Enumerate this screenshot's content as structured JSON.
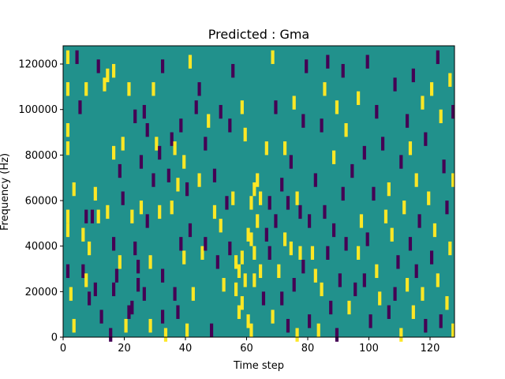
{
  "chart_data": {
    "type": "heatmap",
    "title": "Predicted : Gma",
    "xlabel": "Time step",
    "ylabel": "Frequency (Hz)",
    "xlim": [
      0,
      128
    ],
    "ylim": [
      0,
      128000
    ],
    "xticks": [
      0,
      20,
      40,
      60,
      80,
      100,
      120
    ],
    "xtick_labels": [
      "0",
      "20",
      "40",
      "60",
      "80",
      "100",
      "120"
    ],
    "yticks": [
      0,
      20000,
      40000,
      60000,
      80000,
      100000,
      120000
    ],
    "ytick_labels": [
      "0",
      "20000",
      "40000",
      "60000",
      "80000",
      "100000",
      "120000"
    ],
    "grid": false,
    "colormap": "viridis",
    "colors": {
      "background": "#21918c",
      "high": "#fde725",
      "low": "#440154"
    },
    "cells": [
      {
        "t": 1,
        "f": 124000,
        "v": "high"
      },
      {
        "t": 1,
        "f": 110000,
        "v": "high"
      },
      {
        "t": 1,
        "f": 92000,
        "v": "high"
      },
      {
        "t": 1,
        "f": 84000,
        "v": "high"
      },
      {
        "t": 1,
        "f": 54000,
        "v": "high"
      },
      {
        "t": 1,
        "f": 48000,
        "v": "high"
      },
      {
        "t": 1,
        "f": 30000,
        "v": "low"
      },
      {
        "t": 2,
        "f": 20000,
        "v": "high"
      },
      {
        "t": 3,
        "f": 66000,
        "v": "high"
      },
      {
        "t": 3,
        "f": 6000,
        "v": "high"
      },
      {
        "t": 4,
        "f": 124000,
        "v": "low"
      },
      {
        "t": 5,
        "f": 102000,
        "v": "low"
      },
      {
        "t": 6,
        "f": 46000,
        "v": "high"
      },
      {
        "t": 6,
        "f": 30000,
        "v": "low"
      },
      {
        "t": 7,
        "f": 110000,
        "v": "high"
      },
      {
        "t": 7,
        "f": 54000,
        "v": "low"
      },
      {
        "t": 7,
        "f": 26000,
        "v": "high"
      },
      {
        "t": 8,
        "f": 40000,
        "v": "high"
      },
      {
        "t": 8,
        "f": 18000,
        "v": "low"
      },
      {
        "t": 9,
        "f": 54000,
        "v": "low"
      },
      {
        "t": 10,
        "f": 64000,
        "v": "high"
      },
      {
        "t": 10,
        "f": 22000,
        "v": "low"
      },
      {
        "t": 11,
        "f": 120000,
        "v": "low"
      },
      {
        "t": 11,
        "f": 54000,
        "v": "high"
      },
      {
        "t": 12,
        "f": 10000,
        "v": "low"
      },
      {
        "t": 13,
        "f": 112000,
        "v": "high"
      },
      {
        "t": 14,
        "f": 116000,
        "v": "high"
      },
      {
        "t": 14,
        "f": 56000,
        "v": "high"
      },
      {
        "t": 15,
        "f": 2000,
        "v": "low"
      },
      {
        "t": 16,
        "f": 118000,
        "v": "high"
      },
      {
        "t": 16,
        "f": 82000,
        "v": "high"
      },
      {
        "t": 16,
        "f": 42000,
        "v": "low"
      },
      {
        "t": 16,
        "f": 22000,
        "v": "low"
      },
      {
        "t": 17,
        "f": 28000,
        "v": "low"
      },
      {
        "t": 18,
        "f": 74000,
        "v": "low"
      },
      {
        "t": 18,
        "f": 34000,
        "v": "high"
      },
      {
        "t": 19,
        "f": 86000,
        "v": "high"
      },
      {
        "t": 19,
        "f": 62000,
        "v": "low"
      },
      {
        "t": 20,
        "f": 6000,
        "v": "high"
      },
      {
        "t": 21,
        "f": 110000,
        "v": "high"
      },
      {
        "t": 21,
        "f": 12000,
        "v": "low"
      },
      {
        "t": 22,
        "f": 14000,
        "v": "low"
      },
      {
        "t": 22,
        "f": 54000,
        "v": "high"
      },
      {
        "t": 23,
        "f": 98000,
        "v": "low"
      },
      {
        "t": 23,
        "f": 40000,
        "v": "low"
      },
      {
        "t": 24,
        "f": 32000,
        "v": "low"
      },
      {
        "t": 24,
        "f": 24000,
        "v": "low"
      },
      {
        "t": 25,
        "f": 78000,
        "v": "low"
      },
      {
        "t": 25,
        "f": 58000,
        "v": "high"
      },
      {
        "t": 26,
        "f": 100000,
        "v": "low"
      },
      {
        "t": 26,
        "f": 20000,
        "v": "low"
      },
      {
        "t": 27,
        "f": 92000,
        "v": "low"
      },
      {
        "t": 27,
        "f": 52000,
        "v": "low"
      },
      {
        "t": 28,
        "f": 34000,
        "v": "high"
      },
      {
        "t": 28,
        "f": 6000,
        "v": "high"
      },
      {
        "t": 29,
        "f": 110000,
        "v": "high"
      },
      {
        "t": 29,
        "f": 70000,
        "v": "low"
      },
      {
        "t": 30,
        "f": 86000,
        "v": "high"
      },
      {
        "t": 31,
        "f": 82000,
        "v": "low"
      },
      {
        "t": 31,
        "f": 56000,
        "v": "high"
      },
      {
        "t": 32,
        "f": 120000,
        "v": "low"
      },
      {
        "t": 32,
        "f": 28000,
        "v": "low"
      },
      {
        "t": 32,
        "f": 10000,
        "v": "low"
      },
      {
        "t": 33,
        "f": 2000,
        "v": "high"
      },
      {
        "t": 34,
        "f": 72000,
        "v": "low"
      },
      {
        "t": 35,
        "f": 88000,
        "v": "low"
      },
      {
        "t": 35,
        "f": 58000,
        "v": "high"
      },
      {
        "t": 36,
        "f": 84000,
        "v": "high"
      },
      {
        "t": 36,
        "f": 20000,
        "v": "low"
      },
      {
        "t": 37,
        "f": 68000,
        "v": "high"
      },
      {
        "t": 37,
        "f": 12000,
        "v": "low"
      },
      {
        "t": 38,
        "f": 94000,
        "v": "low"
      },
      {
        "t": 38,
        "f": 42000,
        "v": "low"
      },
      {
        "t": 39,
        "f": 78000,
        "v": "high"
      },
      {
        "t": 39,
        "f": 36000,
        "v": "high"
      },
      {
        "t": 40,
        "f": 66000,
        "v": "low"
      },
      {
        "t": 40,
        "f": 4000,
        "v": "high"
      },
      {
        "t": 41,
        "f": 122000,
        "v": "high"
      },
      {
        "t": 41,
        "f": 48000,
        "v": "low"
      },
      {
        "t": 42,
        "f": 20000,
        "v": "high"
      },
      {
        "t": 43,
        "f": 102000,
        "v": "low"
      },
      {
        "t": 44,
        "f": 110000,
        "v": "low"
      },
      {
        "t": 44,
        "f": 70000,
        "v": "high"
      },
      {
        "t": 45,
        "f": 38000,
        "v": "high"
      },
      {
        "t": 46,
        "f": 86000,
        "v": "low"
      },
      {
        "t": 46,
        "f": 42000,
        "v": "low"
      },
      {
        "t": 47,
        "f": 96000,
        "v": "high"
      },
      {
        "t": 48,
        "f": 4000,
        "v": "low"
      },
      {
        "t": 49,
        "f": 72000,
        "v": "low"
      },
      {
        "t": 49,
        "f": 56000,
        "v": "high"
      },
      {
        "t": 50,
        "f": 34000,
        "v": "low"
      },
      {
        "t": 51,
        "f": 100000,
        "v": "low"
      },
      {
        "t": 51,
        "f": 50000,
        "v": "high"
      },
      {
        "t": 52,
        "f": 24000,
        "v": "high"
      },
      {
        "t": 53,
        "f": 60000,
        "v": "low"
      },
      {
        "t": 54,
        "f": 94000,
        "v": "low"
      },
      {
        "t": 54,
        "f": 40000,
        "v": "low"
      },
      {
        "t": 55,
        "f": 118000,
        "v": "low"
      },
      {
        "t": 55,
        "f": 62000,
        "v": "high"
      },
      {
        "t": 56,
        "f": 34000,
        "v": "high"
      },
      {
        "t": 56,
        "f": 22000,
        "v": "high"
      },
      {
        "t": 57,
        "f": 30000,
        "v": "high"
      },
      {
        "t": 57,
        "f": 12000,
        "v": "high"
      },
      {
        "t": 58,
        "f": 102000,
        "v": "high"
      },
      {
        "t": 58,
        "f": 36000,
        "v": "high"
      },
      {
        "t": 58,
        "f": 16000,
        "v": "high"
      },
      {
        "t": 59,
        "f": 90000,
        "v": "high"
      },
      {
        "t": 59,
        "f": 26000,
        "v": "high"
      },
      {
        "t": 60,
        "f": 46000,
        "v": "high"
      },
      {
        "t": 60,
        "f": 8000,
        "v": "high"
      },
      {
        "t": 61,
        "f": 60000,
        "v": "high"
      },
      {
        "t": 61,
        "f": 44000,
        "v": "high"
      },
      {
        "t": 61,
        "f": 4000,
        "v": "high"
      },
      {
        "t": 62,
        "f": 66000,
        "v": "high"
      },
      {
        "t": 62,
        "f": 38000,
        "v": "high"
      },
      {
        "t": 62,
        "f": 26000,
        "v": "high"
      },
      {
        "t": 63,
        "f": 70000,
        "v": "high"
      },
      {
        "t": 63,
        "f": 52000,
        "v": "high"
      },
      {
        "t": 64,
        "f": 62000,
        "v": "high"
      },
      {
        "t": 64,
        "f": 30000,
        "v": "high"
      },
      {
        "t": 65,
        "f": 18000,
        "v": "low"
      },
      {
        "t": 66,
        "f": 84000,
        "v": "high"
      },
      {
        "t": 66,
        "f": 46000,
        "v": "low"
      },
      {
        "t": 67,
        "f": 60000,
        "v": "low"
      },
      {
        "t": 67,
        "f": 38000,
        "v": "low"
      },
      {
        "t": 68,
        "f": 124000,
        "v": "high"
      },
      {
        "t": 68,
        "f": 10000,
        "v": "high"
      },
      {
        "t": 69,
        "f": 102000,
        "v": "low"
      },
      {
        "t": 69,
        "f": 52000,
        "v": "low"
      },
      {
        "t": 70,
        "f": 30000,
        "v": "high"
      },
      {
        "t": 71,
        "f": 68000,
        "v": "low"
      },
      {
        "t": 71,
        "f": 18000,
        "v": "low"
      },
      {
        "t": 72,
        "f": 84000,
        "v": "high"
      },
      {
        "t": 72,
        "f": 44000,
        "v": "high"
      },
      {
        "t": 73,
        "f": 60000,
        "v": "low"
      },
      {
        "t": 73,
        "f": 6000,
        "v": "low"
      },
      {
        "t": 74,
        "f": 78000,
        "v": "low"
      },
      {
        "t": 74,
        "f": 40000,
        "v": "high"
      },
      {
        "t": 75,
        "f": 104000,
        "v": "high"
      },
      {
        "t": 75,
        "f": 24000,
        "v": "low"
      },
      {
        "t": 76,
        "f": 62000,
        "v": "high"
      },
      {
        "t": 76,
        "f": 2000,
        "v": "high"
      },
      {
        "t": 77,
        "f": 56000,
        "v": "low"
      },
      {
        "t": 77,
        "f": 38000,
        "v": "high"
      },
      {
        "t": 78,
        "f": 96000,
        "v": "low"
      },
      {
        "t": 78,
        "f": 32000,
        "v": "low"
      },
      {
        "t": 79,
        "f": 120000,
        "v": "low"
      },
      {
        "t": 80,
        "f": 52000,
        "v": "low"
      },
      {
        "t": 80,
        "f": 8000,
        "v": "low"
      },
      {
        "t": 81,
        "f": 38000,
        "v": "high"
      },
      {
        "t": 82,
        "f": 70000,
        "v": "low"
      },
      {
        "t": 82,
        "f": 28000,
        "v": "high"
      },
      {
        "t": 83,
        "f": 4000,
        "v": "high"
      },
      {
        "t": 84,
        "f": 94000,
        "v": "low"
      },
      {
        "t": 84,
        "f": 22000,
        "v": "high"
      },
      {
        "t": 85,
        "f": 110000,
        "v": "high"
      },
      {
        "t": 85,
        "f": 56000,
        "v": "low"
      },
      {
        "t": 86,
        "f": 122000,
        "v": "low"
      },
      {
        "t": 86,
        "f": 38000,
        "v": "low"
      },
      {
        "t": 87,
        "f": 14000,
        "v": "low"
      },
      {
        "t": 88,
        "f": 80000,
        "v": "high"
      },
      {
        "t": 88,
        "f": 48000,
        "v": "low"
      },
      {
        "t": 89,
        "f": 102000,
        "v": "high"
      },
      {
        "t": 89,
        "f": 2000,
        "v": "low"
      },
      {
        "t": 90,
        "f": 26000,
        "v": "low"
      },
      {
        "t": 91,
        "f": 118000,
        "v": "low"
      },
      {
        "t": 91,
        "f": 64000,
        "v": "low"
      },
      {
        "t": 92,
        "f": 92000,
        "v": "high"
      },
      {
        "t": 92,
        "f": 42000,
        "v": "low"
      },
      {
        "t": 93,
        "f": 14000,
        "v": "high"
      },
      {
        "t": 94,
        "f": 74000,
        "v": "low"
      },
      {
        "t": 95,
        "f": 22000,
        "v": "low"
      },
      {
        "t": 96,
        "f": 106000,
        "v": "high"
      },
      {
        "t": 96,
        "f": 38000,
        "v": "high"
      },
      {
        "t": 97,
        "f": 52000,
        "v": "high"
      },
      {
        "t": 98,
        "f": 82000,
        "v": "low"
      },
      {
        "t": 98,
        "f": 26000,
        "v": "low"
      },
      {
        "t": 99,
        "f": 122000,
        "v": "low"
      },
      {
        "t": 99,
        "f": 44000,
        "v": "low"
      },
      {
        "t": 100,
        "f": 8000,
        "v": "low"
      },
      {
        "t": 101,
        "f": 64000,
        "v": "low"
      },
      {
        "t": 102,
        "f": 100000,
        "v": "low"
      },
      {
        "t": 102,
        "f": 30000,
        "v": "high"
      },
      {
        "t": 103,
        "f": 18000,
        "v": "high"
      },
      {
        "t": 104,
        "f": 86000,
        "v": "low"
      },
      {
        "t": 105,
        "f": 54000,
        "v": "high"
      },
      {
        "t": 106,
        "f": 66000,
        "v": "high"
      },
      {
        "t": 106,
        "f": 12000,
        "v": "low"
      },
      {
        "t": 107,
        "f": 46000,
        "v": "high"
      },
      {
        "t": 108,
        "f": 112000,
        "v": "low"
      },
      {
        "t": 108,
        "f": 20000,
        "v": "low"
      },
      {
        "t": 109,
        "f": 34000,
        "v": "low"
      },
      {
        "t": 110,
        "f": 78000,
        "v": "low"
      },
      {
        "t": 110,
        "f": 2000,
        "v": "high"
      },
      {
        "t": 111,
        "f": 58000,
        "v": "high"
      },
      {
        "t": 112,
        "f": 96000,
        "v": "low"
      },
      {
        "t": 112,
        "f": 24000,
        "v": "high"
      },
      {
        "t": 113,
        "f": 84000,
        "v": "high"
      },
      {
        "t": 113,
        "f": 42000,
        "v": "low"
      },
      {
        "t": 114,
        "f": 116000,
        "v": "low"
      },
      {
        "t": 114,
        "f": 12000,
        "v": "high"
      },
      {
        "t": 115,
        "f": 70000,
        "v": "high"
      },
      {
        "t": 115,
        "f": 30000,
        "v": "low"
      },
      {
        "t": 116,
        "f": 52000,
        "v": "low"
      },
      {
        "t": 117,
        "f": 104000,
        "v": "high"
      },
      {
        "t": 117,
        "f": 20000,
        "v": "high"
      },
      {
        "t": 118,
        "f": 88000,
        "v": "low"
      },
      {
        "t": 118,
        "f": 6000,
        "v": "low"
      },
      {
        "t": 119,
        "f": 62000,
        "v": "high"
      },
      {
        "t": 120,
        "f": 36000,
        "v": "low"
      },
      {
        "t": 120,
        "f": 110000,
        "v": "high"
      },
      {
        "t": 121,
        "f": 48000,
        "v": "high"
      },
      {
        "t": 122,
        "f": 124000,
        "v": "low"
      },
      {
        "t": 122,
        "f": 26000,
        "v": "high"
      },
      {
        "t": 123,
        "f": 98000,
        "v": "high"
      },
      {
        "t": 123,
        "f": 8000,
        "v": "low"
      },
      {
        "t": 124,
        "f": 76000,
        "v": "low"
      },
      {
        "t": 125,
        "f": 58000,
        "v": "low"
      },
      {
        "t": 125,
        "f": 16000,
        "v": "high"
      },
      {
        "t": 126,
        "f": 114000,
        "v": "high"
      },
      {
        "t": 126,
        "f": 40000,
        "v": "high"
      },
      {
        "t": 127,
        "f": 100000,
        "v": "low"
      },
      {
        "t": 127,
        "f": 70000,
        "v": "high"
      },
      {
        "t": 127,
        "f": 4000,
        "v": "high"
      }
    ]
  }
}
